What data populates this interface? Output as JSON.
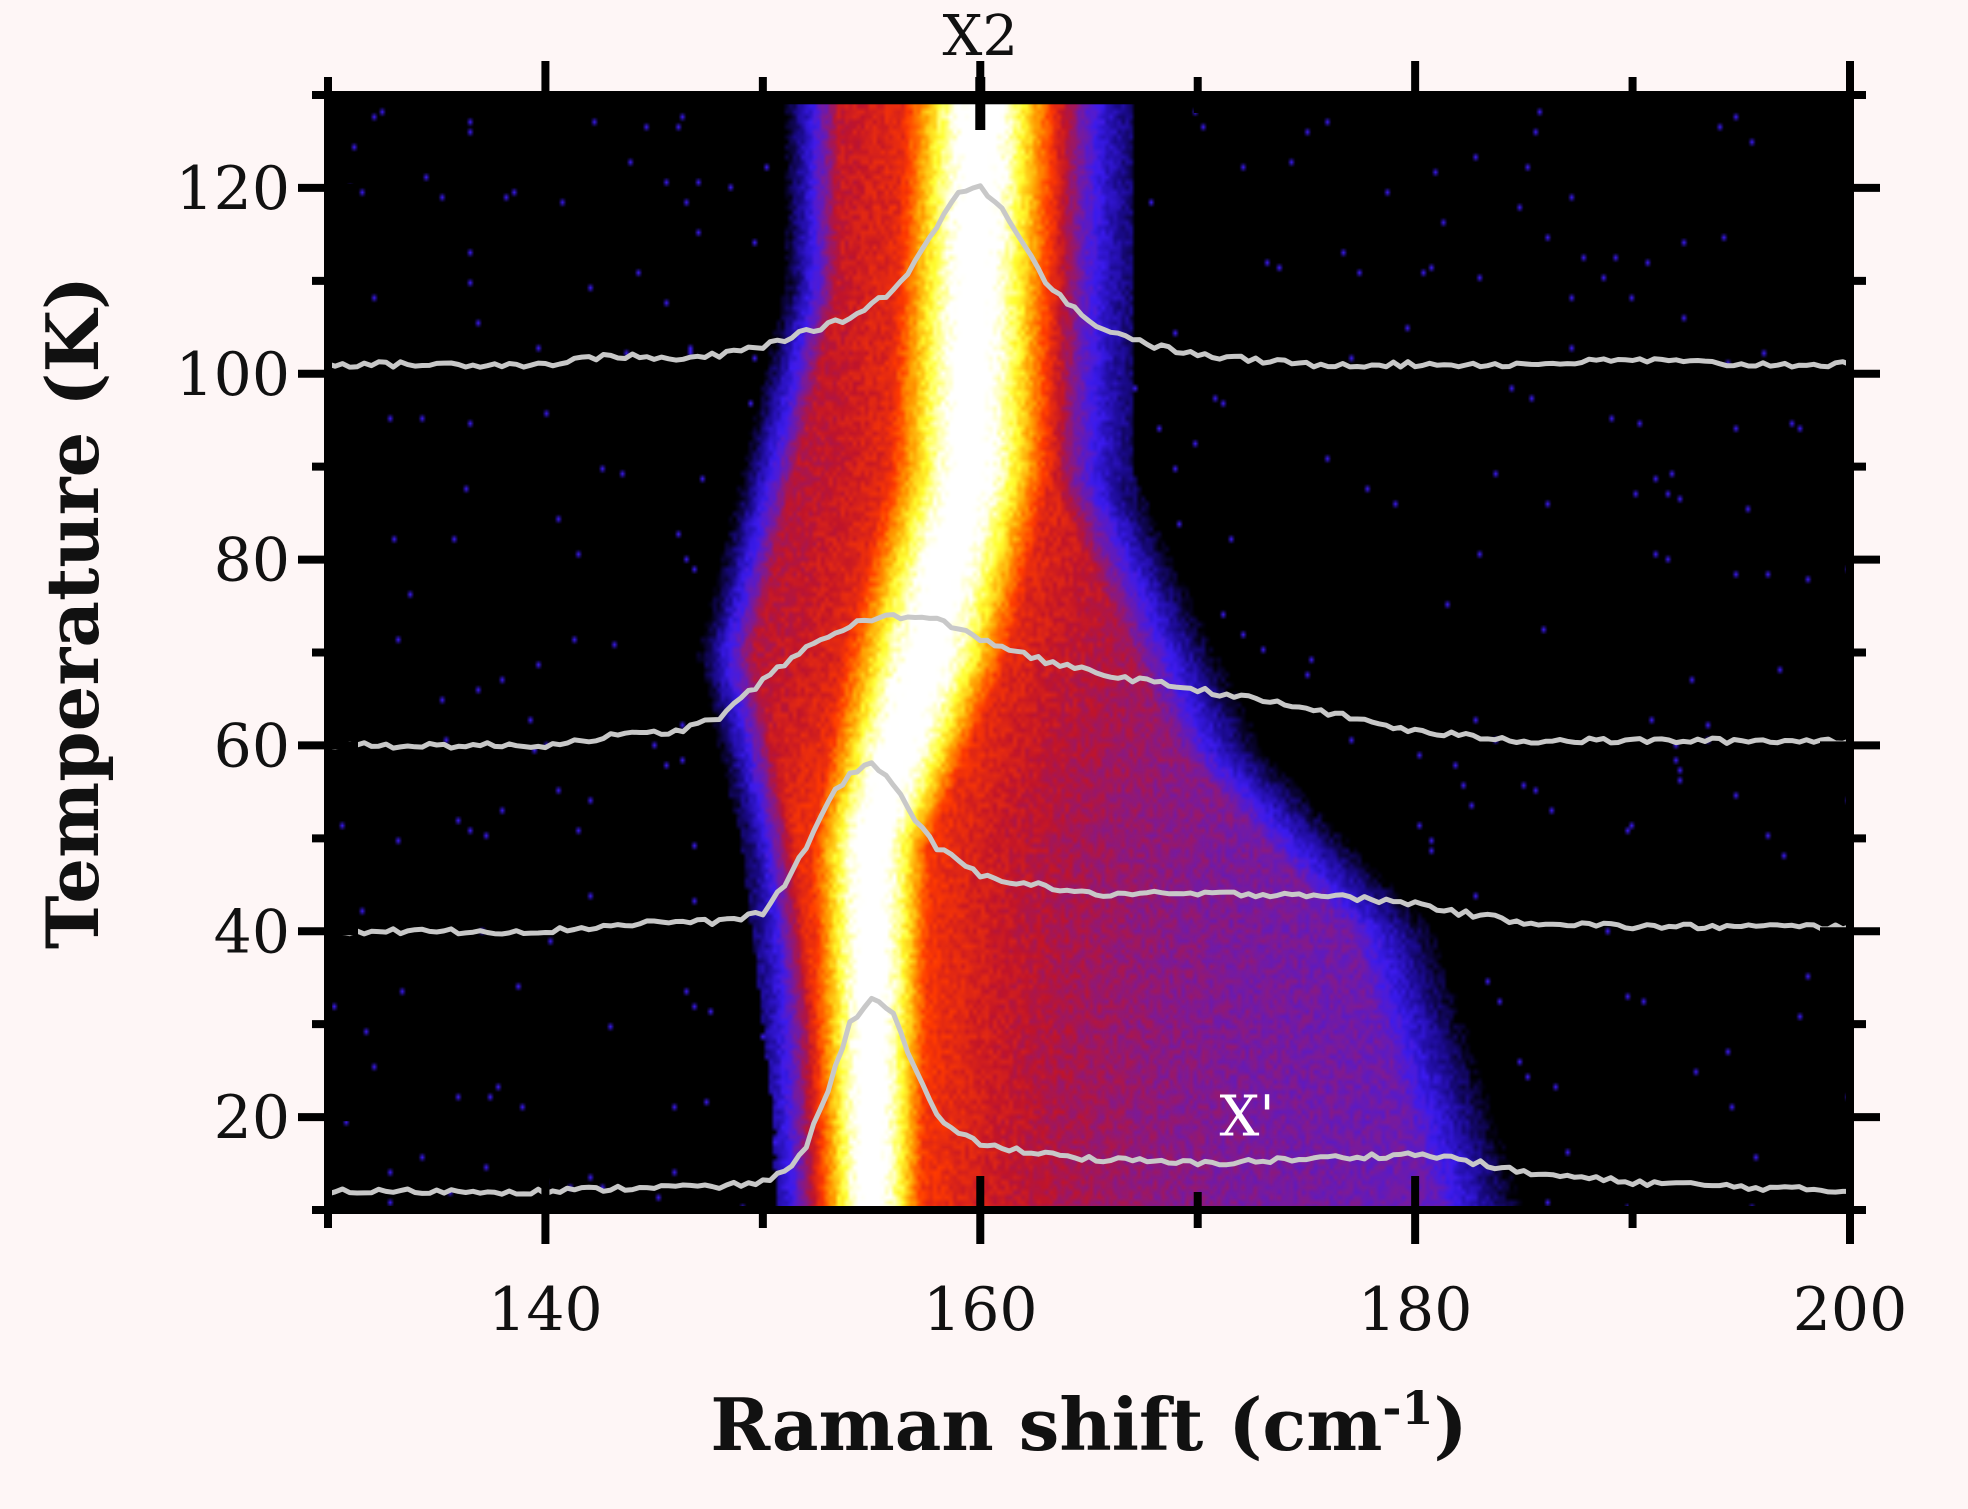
{
  "chart_data": {
    "type": "heatmap",
    "title": "",
    "xlabel": "Raman shift (cm",
    "xlabel_sup": "-1",
    "xlabel_close": ")",
    "ylabel": "Temperature (K)",
    "xlim": [
      130,
      200
    ],
    "ylim": [
      10,
      130
    ],
    "x_ticks": [
      140,
      160,
      180,
      200
    ],
    "y_ticks": [
      20,
      40,
      60,
      80,
      100,
      120
    ],
    "grid": false,
    "colormap": [
      "#000000",
      "#1a0a8c",
      "#3b1bf0",
      "#7a1a9a",
      "#c0142a",
      "#ff3a00",
      "#ff9a00",
      "#ffff30",
      "#ffffff"
    ],
    "annotations": [
      {
        "text": "X2",
        "x": 160,
        "position": "top-axis",
        "color": "#111111"
      },
      {
        "text": "X'",
        "x": 171,
        "y": 18,
        "color": "#ffffff"
      }
    ],
    "series": [
      {
        "baseline_temperature": 12,
        "color": "#c8c8c8",
        "x": [
          130,
          140,
          145,
          148,
          150,
          151,
          152,
          153,
          154,
          155,
          156,
          157,
          158,
          160,
          165,
          170,
          175,
          180,
          182,
          185,
          190,
          195,
          200
        ],
        "y": [
          12,
          12,
          12.5,
          12.5,
          13,
          14,
          17,
          23,
          30,
          33,
          31,
          25,
          20,
          17,
          15.5,
          15,
          15.5,
          16,
          15.5,
          14,
          13,
          12.5,
          12
        ]
      },
      {
        "baseline_temperature": 40,
        "color": "#c8c8c8",
        "x": [
          130,
          140,
          145,
          148,
          150,
          151,
          152,
          153,
          154,
          155,
          156,
          157,
          158,
          160,
          165,
          170,
          175,
          180,
          182,
          185,
          190,
          195,
          200
        ],
        "y": [
          40,
          40,
          41,
          41,
          42,
          45,
          49,
          54,
          57,
          58,
          56,
          52,
          49,
          46,
          44,
          44,
          44,
          43,
          42,
          41,
          40.5,
          40.5,
          40.5
        ]
      },
      {
        "baseline_temperature": 60,
        "color": "#c8c8c8",
        "x": [
          130,
          140,
          143,
          146,
          148,
          150,
          152,
          154,
          156,
          158,
          160,
          163,
          166,
          170,
          175,
          180,
          185,
          190,
          195,
          200
        ],
        "y": [
          60,
          60,
          61,
          61.5,
          63,
          67,
          70.5,
          73,
          74,
          73.5,
          71.5,
          69,
          67.5,
          66,
          64,
          61.5,
          60.5,
          60.5,
          60.5,
          60.5
        ]
      },
      {
        "baseline_temperature": 101,
        "color": "#c8c8c8",
        "x": [
          130,
          140,
          143,
          146,
          148,
          150,
          152,
          154,
          156,
          157,
          158,
          159,
          160,
          161,
          162,
          163,
          165,
          168,
          170,
          175,
          180,
          185,
          190,
          195,
          200
        ],
        "y": [
          101,
          101,
          102,
          101.5,
          102,
          103,
          104.5,
          106,
          109,
          112,
          116,
          119.5,
          120,
          118,
          114,
          110,
          105.5,
          103,
          102,
          101,
          101,
          101,
          101.5,
          101,
          101
        ]
      }
    ],
    "heatmap_model": {
      "main_peak_center": [
        {
          "T": 10,
          "x": 155
        },
        {
          "T": 50,
          "x": 155
        },
        {
          "T": 70,
          "x": 157.5
        },
        {
          "T": 90,
          "x": 159.5
        },
        {
          "T": 130,
          "x": 160
        }
      ],
      "main_peak_halfwidth": [
        {
          "T": 10,
          "x": 2.2
        },
        {
          "T": 50,
          "x": 2.6
        },
        {
          "T": 70,
          "x": 3.5
        },
        {
          "T": 130,
          "x": 3.2
        }
      ],
      "broad_band_right_edge": [
        {
          "T": 10,
          "x": 185
        },
        {
          "T": 40,
          "x": 181
        },
        {
          "T": 60,
          "x": 173
        },
        {
          "T": 90,
          "x": 167
        },
        {
          "T": 130,
          "x": 167
        }
      ],
      "broad_band_left_edge": [
        {
          "T": 10,
          "x": 151
        },
        {
          "T": 50,
          "x": 149
        },
        {
          "T": 70,
          "x": 147
        },
        {
          "T": 110,
          "x": 151
        },
        {
          "T": 130,
          "x": 151
        }
      ]
    }
  }
}
